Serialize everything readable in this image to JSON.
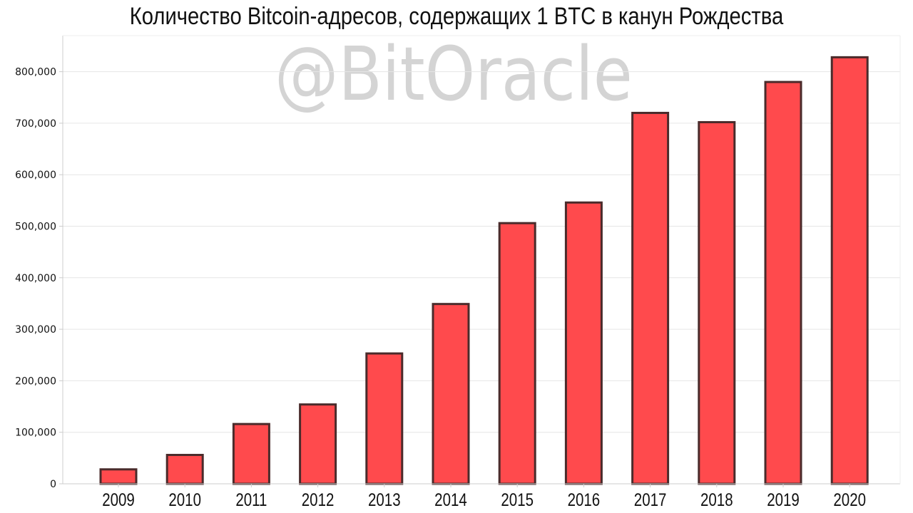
{
  "title": "Количество Bitcoin-адресов, содержащих 1 BTC в канун Рождества",
  "watermark": "@BitOracle",
  "colors": {
    "bar_fill": "#ff4a4d",
    "bar_stroke": "#4a2b2b",
    "grid": "#e6e6e6",
    "axis": "#cccccc",
    "text": "#111111",
    "watermark": "#d4d4d4"
  },
  "chart_data": {
    "type": "bar",
    "title": "Количество Bitcoin-адресов, содержащих 1 BTC в канун Рождества",
    "categories": [
      "2009",
      "2010",
      "2011",
      "2012",
      "2013",
      "2014",
      "2015",
      "2016",
      "2017",
      "2018",
      "2019",
      "2020"
    ],
    "values": [
      28000,
      56000,
      116000,
      154000,
      253000,
      349000,
      506000,
      546000,
      720000,
      702000,
      780000,
      828000
    ],
    "y_ticks": [
      0,
      100000,
      200000,
      300000,
      400000,
      500000,
      600000,
      700000,
      800000
    ],
    "y_tick_labels": [
      "0",
      "100,000",
      "200,000",
      "300,000",
      "400,000",
      "500,000",
      "600,000",
      "700,000",
      "800,000"
    ],
    "ylim": [
      0,
      870000
    ],
    "grid": "horizontal",
    "xlabel": "",
    "ylabel": "",
    "legend": "none"
  }
}
